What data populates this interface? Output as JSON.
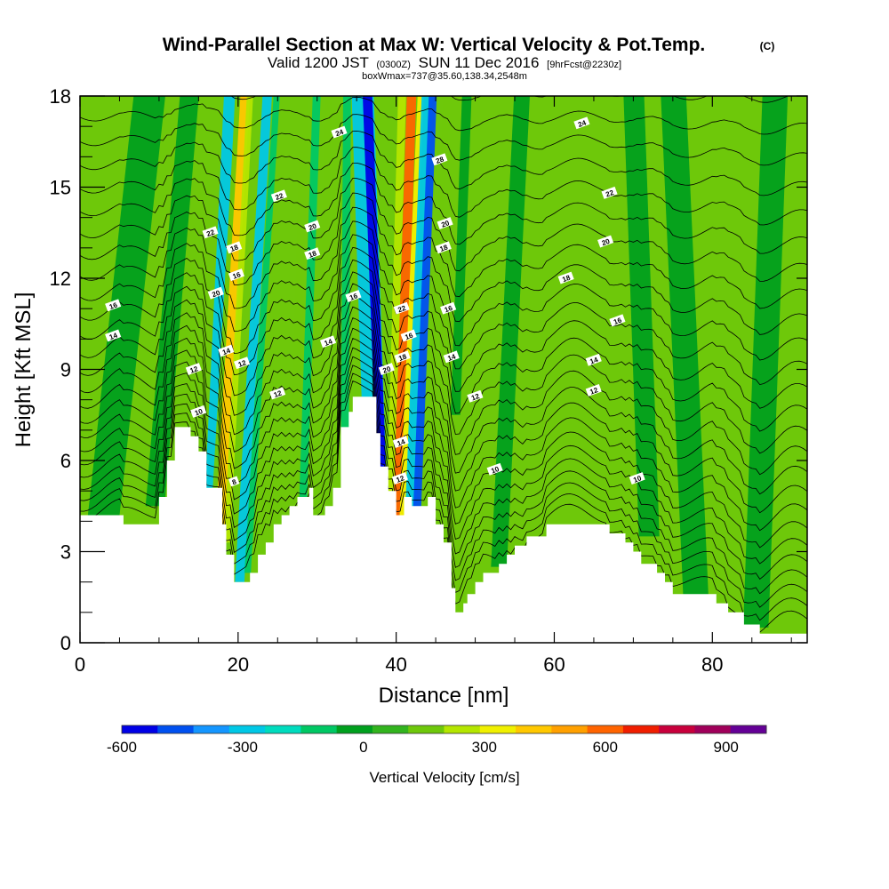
{
  "chart_data": {
    "type": "heatmap",
    "title": "Wind-Parallel Section at Max W: Vertical Velocity & Pot.Temp.",
    "title_mark": "(C)",
    "subtitle_prefix": "Valid 1200 JST",
    "subtitle_zulu": "(0300Z)",
    "subtitle_date": "SUN 11 Dec 2016",
    "subtitle_fcst": "[9hrFcst@2230z]",
    "subtitle2": "boxWmax=737@35.60,138.34,2548m",
    "xlabel": "Distance [nm]",
    "ylabel": "Height [Kft MSL]",
    "xlim": [
      0,
      92
    ],
    "ylim": [
      0,
      18
    ],
    "x_ticks": [
      0,
      20,
      40,
      60,
      80
    ],
    "y_ticks": [
      0,
      3,
      6,
      9,
      12,
      15,
      18
    ],
    "colorbar": {
      "label": "Vertical Velocity [cm/s]",
      "tick_values": [
        -600,
        -300,
        0,
        300,
        600,
        900
      ],
      "tick_labels": [
        "-600",
        "-300",
        "0",
        "300",
        "600",
        "900"
      ],
      "range": [
        -600,
        1000
      ],
      "colors": [
        "#0000e6",
        "#0050f0",
        "#1496ff",
        "#00c8e6",
        "#00dcbe",
        "#00c864",
        "#00a01e",
        "#32b41e",
        "#6ec80a",
        "#b4e600",
        "#f0f000",
        "#ffc800",
        "#ffa000",
        "#ff6400",
        "#f01e00",
        "#c8003c",
        "#a0005a",
        "#640096"
      ]
    },
    "terrain_kft": [
      [
        0,
        4.2
      ],
      [
        5.5,
        4.2
      ],
      [
        5.5,
        3.9
      ],
      [
        10,
        3.9
      ],
      [
        10,
        4.8
      ],
      [
        11,
        4.8
      ],
      [
        11,
        6.0
      ],
      [
        12,
        6.0
      ],
      [
        12,
        7.1
      ],
      [
        14,
        7.1
      ],
      [
        14,
        6.8
      ],
      [
        15,
        6.8
      ],
      [
        15,
        6.3
      ],
      [
        16,
        6.3
      ],
      [
        16,
        5.1
      ],
      [
        18,
        5.1
      ],
      [
        18,
        3.9
      ],
      [
        18.5,
        3.9
      ],
      [
        18.5,
        2.9
      ],
      [
        19.5,
        2.9
      ],
      [
        19.5,
        2.0
      ],
      [
        21.5,
        2.0
      ],
      [
        21.5,
        2.3
      ],
      [
        22.5,
        2.3
      ],
      [
        22.5,
        2.9
      ],
      [
        23.5,
        2.9
      ],
      [
        23.5,
        3.3
      ],
      [
        24.5,
        3.3
      ],
      [
        24.5,
        3.9
      ],
      [
        25.5,
        3.9
      ],
      [
        25.5,
        4.2
      ],
      [
        26.5,
        4.2
      ],
      [
        26.5,
        4.5
      ],
      [
        27.5,
        4.5
      ],
      [
        27.5,
        4.8
      ],
      [
        29,
        4.8
      ],
      [
        29,
        5.1
      ],
      [
        29.5,
        5.1
      ],
      [
        29.5,
        4.2
      ],
      [
        31,
        4.2
      ],
      [
        31,
        4.5
      ],
      [
        32,
        4.5
      ],
      [
        32,
        5.1
      ],
      [
        33,
        5.1
      ],
      [
        33,
        7.1
      ],
      [
        34,
        7.1
      ],
      [
        34,
        7.6
      ],
      [
        34.5,
        7.6
      ],
      [
        34.5,
        8.1
      ],
      [
        37.5,
        8.1
      ],
      [
        37.5,
        6.9
      ],
      [
        38,
        6.9
      ],
      [
        38,
        5.8
      ],
      [
        39,
        5.8
      ],
      [
        39,
        5.0
      ],
      [
        40,
        5.0
      ],
      [
        40,
        4.2
      ],
      [
        41,
        4.2
      ],
      [
        41,
        4.8
      ],
      [
        42,
        4.8
      ],
      [
        42,
        4.5
      ],
      [
        44,
        4.5
      ],
      [
        44,
        4.8
      ],
      [
        45,
        4.8
      ],
      [
        45,
        3.9
      ],
      [
        46,
        3.9
      ],
      [
        46,
        3.3
      ],
      [
        47,
        3.3
      ],
      [
        47,
        1.8
      ],
      [
        47.5,
        1.8
      ],
      [
        47.5,
        1.0
      ],
      [
        48.5,
        1.0
      ],
      [
        48.5,
        1.3
      ],
      [
        49,
        1.3
      ],
      [
        49,
        1.6
      ],
      [
        50,
        1.6
      ],
      [
        50,
        2.0
      ],
      [
        51,
        2.0
      ],
      [
        51,
        2.3
      ],
      [
        53,
        2.3
      ],
      [
        53,
        2.6
      ],
      [
        54,
        2.6
      ],
      [
        54,
        2.9
      ],
      [
        55,
        2.9
      ],
      [
        55,
        3.2
      ],
      [
        56.5,
        3.2
      ],
      [
        56.5,
        3.5
      ],
      [
        59,
        3.5
      ],
      [
        59,
        3.9
      ],
      [
        67,
        3.9
      ],
      [
        67,
        3.6
      ],
      [
        69,
        3.6
      ],
      [
        69,
        3.3
      ],
      [
        70,
        3.3
      ],
      [
        70,
        3.0
      ],
      [
        71,
        3.0
      ],
      [
        71,
        2.6
      ],
      [
        73,
        2.6
      ],
      [
        73,
        2.3
      ],
      [
        74,
        2.3
      ],
      [
        74,
        2.0
      ],
      [
        75,
        2.0
      ],
      [
        75,
        1.6
      ],
      [
        80.5,
        1.6
      ],
      [
        80.5,
        1.3
      ],
      [
        82,
        1.3
      ],
      [
        82,
        1.0
      ],
      [
        84,
        1.0
      ],
      [
        84,
        0.6
      ],
      [
        86,
        0.6
      ],
      [
        86,
        0.3
      ],
      [
        92,
        0.3
      ]
    ],
    "w_features": [
      {
        "x_base": 16.2,
        "y_base": 4.8,
        "x_top": 19.0,
        "half_width": 0.7,
        "w": -250
      },
      {
        "x_base": 16.9,
        "y_base": 4.8,
        "x_top": 20.3,
        "half_width": 0.5,
        "w": 180
      },
      {
        "x_base": 17.6,
        "y_base": 4.8,
        "x_top": 21.0,
        "half_width": 0.6,
        "w": 420
      },
      {
        "x_base": 18.6,
        "y_base": 4.8,
        "x_top": 21.6,
        "half_width": 0.4,
        "w": 220
      },
      {
        "x_base": 20.2,
        "y_base": 3.5,
        "x_top": 23.8,
        "half_width": 0.6,
        "w": -260
      },
      {
        "x_base": 21.2,
        "y_base": 3.8,
        "x_top": 25.0,
        "half_width": 0.4,
        "w": -100
      },
      {
        "x_base": 27.0,
        "y_base": 6.0,
        "x_top": 28.5,
        "half_width": 0.5,
        "w": 130
      },
      {
        "x_base": 28.2,
        "y_base": 6.0,
        "x_top": 30.0,
        "half_width": 0.5,
        "w": -130
      },
      {
        "x_base": 30.5,
        "y_base": 8.0,
        "x_top": 31.5,
        "half_width": 0.4,
        "w": 150
      },
      {
        "x_base": 33.5,
        "y_base": 8.0,
        "x_top": 33.8,
        "half_width": 0.5,
        "w": -150
      },
      {
        "x_base": 37.5,
        "y_base": 5.8,
        "x_top": 35.7,
        "half_width": 1.4,
        "w": -280
      },
      {
        "x_base": 38.3,
        "y_base": 5.8,
        "x_top": 36.3,
        "half_width": 0.6,
        "w": -560
      },
      {
        "x_base": 39.3,
        "y_base": 5.8,
        "x_top": 40.8,
        "half_width": 0.5,
        "w": 260
      },
      {
        "x_base": 40.2,
        "y_base": 5.5,
        "x_top": 42.0,
        "half_width": 0.6,
        "w": 640
      },
      {
        "x_base": 40.8,
        "y_base": 5.5,
        "x_top": 43.2,
        "half_width": 0.4,
        "w": 360
      },
      {
        "x_base": 41.8,
        "y_base": 5.5,
        "x_top": 44.0,
        "half_width": 0.7,
        "w": -280
      },
      {
        "x_base": 42.6,
        "y_base": 5.5,
        "x_top": 44.7,
        "half_width": 0.5,
        "w": -450
      },
      {
        "x_base": 43.8,
        "y_base": 6.0,
        "x_top": 46.5,
        "half_width": 0.4,
        "w": 150
      },
      {
        "x_base": 2.5,
        "y_base": 4.5,
        "x_top": 9.0,
        "half_width": 2.0,
        "w": -50
      },
      {
        "x_base": 9.5,
        "y_base": 6.0,
        "x_top": 14.0,
        "half_width": 1.2,
        "w": -50
      },
      {
        "x_base": 53.0,
        "y_base": 4.0,
        "x_top": 56.0,
        "half_width": 1.0,
        "w": -50
      },
      {
        "x_base": 72.0,
        "y_base": 5.0,
        "x_top": 70.0,
        "half_width": 1.3,
        "w": -50
      },
      {
        "x_base": 78.0,
        "y_base": 2.5,
        "x_top": 75.0,
        "half_width": 1.6,
        "w": -50
      },
      {
        "x_base": 85.5,
        "y_base": 2.0,
        "x_top": 88.0,
        "half_width": 1.6,
        "w": -50
      },
      {
        "x_base": 47.5,
        "y_base": 9.0,
        "x_top": 49.0,
        "half_width": 0.6,
        "w": -50
      }
    ],
    "contour_labels": [
      {
        "x": 4.2,
        "y": 11.1,
        "text": "16"
      },
      {
        "x": 4.2,
        "y": 10.1,
        "text": "14"
      },
      {
        "x": 16.5,
        "y": 13.5,
        "text": "22"
      },
      {
        "x": 19.5,
        "y": 13.0,
        "text": "18"
      },
      {
        "x": 19.8,
        "y": 12.1,
        "text": "16"
      },
      {
        "x": 17.2,
        "y": 11.5,
        "text": "20"
      },
      {
        "x": 18.5,
        "y": 9.6,
        "text": "14"
      },
      {
        "x": 20.5,
        "y": 9.2,
        "text": "12"
      },
      {
        "x": 14.4,
        "y": 9.0,
        "text": "12"
      },
      {
        "x": 15.0,
        "y": 7.6,
        "text": "10"
      },
      {
        "x": 19.5,
        "y": 5.3,
        "text": "8"
      },
      {
        "x": 25.2,
        "y": 14.7,
        "text": "22"
      },
      {
        "x": 29.4,
        "y": 13.7,
        "text": "20"
      },
      {
        "x": 29.4,
        "y": 12.8,
        "text": "18"
      },
      {
        "x": 32.8,
        "y": 16.8,
        "text": "24"
      },
      {
        "x": 34.6,
        "y": 11.4,
        "text": "16"
      },
      {
        "x": 31.4,
        "y": 9.9,
        "text": "14"
      },
      {
        "x": 25.0,
        "y": 8.2,
        "text": "12"
      },
      {
        "x": 38.8,
        "y": 9.0,
        "text": "20"
      },
      {
        "x": 40.7,
        "y": 11.0,
        "text": "22"
      },
      {
        "x": 41.6,
        "y": 10.1,
        "text": "16"
      },
      {
        "x": 40.8,
        "y": 9.4,
        "text": "18"
      },
      {
        "x": 40.6,
        "y": 6.6,
        "text": "14"
      },
      {
        "x": 40.5,
        "y": 5.4,
        "text": "12"
      },
      {
        "x": 45.5,
        "y": 15.9,
        "text": "28"
      },
      {
        "x": 46.2,
        "y": 13.8,
        "text": "20"
      },
      {
        "x": 46.0,
        "y": 13.0,
        "text": "18"
      },
      {
        "x": 46.6,
        "y": 11.0,
        "text": "16"
      },
      {
        "x": 47.0,
        "y": 9.4,
        "text": "14"
      },
      {
        "x": 50.0,
        "y": 8.1,
        "text": "12"
      },
      {
        "x": 52.5,
        "y": 5.7,
        "text": "10"
      },
      {
        "x": 63.5,
        "y": 17.1,
        "text": "24"
      },
      {
        "x": 67.0,
        "y": 14.8,
        "text": "22"
      },
      {
        "x": 66.5,
        "y": 13.2,
        "text": "20"
      },
      {
        "x": 61.5,
        "y": 12.0,
        "text": "18"
      },
      {
        "x": 68.0,
        "y": 10.6,
        "text": "16"
      },
      {
        "x": 65.0,
        "y": 9.3,
        "text": "14"
      },
      {
        "x": 65.0,
        "y": 8.3,
        "text": "12"
      },
      {
        "x": 70.5,
        "y": 5.4,
        "text": "10"
      }
    ]
  }
}
